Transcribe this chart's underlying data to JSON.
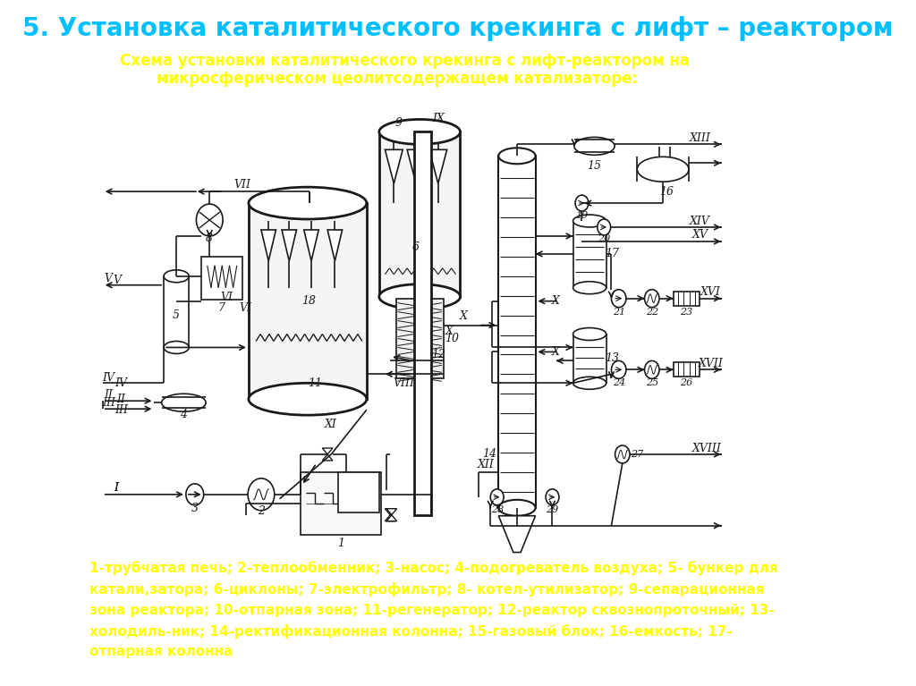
{
  "title": "5. Установка каталитического крекинга с лифт – реактором",
  "subtitle1": "Схема установки каталитического крекинга с лифт-реактором на",
  "subtitle2": "микросферическом цеолитсодержащем катализаторе:",
  "legend": "1-трубчатая печь; 2-теплообменник; 3-насос; 4-подогреватель воздуха; 5- бункер для\nкатали,затора; 6-циклоны; 7-электрофильтр; 8- котел-утилизатор; 9-сепарационная\nзона реактора; 10-отпарная зона; 11-регенератор; 12-реактор сквознопроточный; 13-\nхолодиль-ник; 14-ректификационная колонна; 15-газовый блок; 16-емкость; 17-\nотпарная колонна",
  "bg_color": "#ffffff",
  "title_color": "#00bfff",
  "subtitle_color": "#ffff00",
  "legend_color": "#ffff00",
  "dc": "#1a1a1a"
}
